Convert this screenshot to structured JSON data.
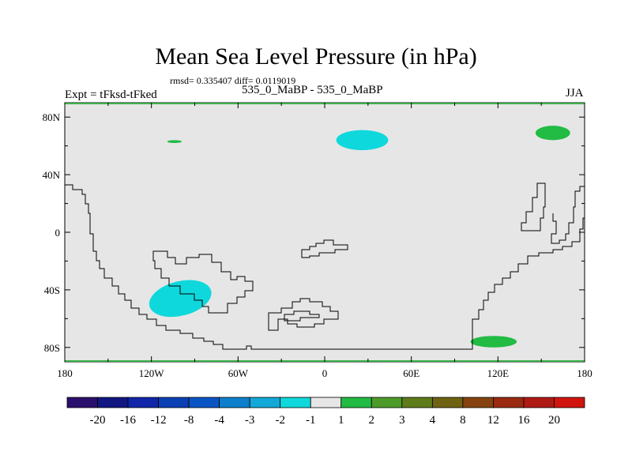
{
  "title": "Mean Sea Level Pressure (in hPa)",
  "stats_text": "rmsd= 0.335407 diff= 0.0119019",
  "experiment_label": "Expt = tFksd-tFked",
  "subtitle": "535_0_MaBP - 535_0_MaBP",
  "season": "JJA",
  "colors": {
    "background_field": "#e6e6e6",
    "coastline": "#000000",
    "frame_edge": "#3cb24a",
    "anomaly_cyan": "#0fd8dc",
    "anomaly_green": "#22bb44"
  },
  "axes": {
    "lon_ticks": [
      {
        "value": -180,
        "label": "180"
      },
      {
        "value": -120,
        "label": "120W"
      },
      {
        "value": -60,
        "label": "60W"
      },
      {
        "value": 0,
        "label": "0"
      },
      {
        "value": 60,
        "label": "60E"
      },
      {
        "value": 120,
        "label": "120E"
      },
      {
        "value": 180,
        "label": "180"
      }
    ],
    "lat_ticks": [
      {
        "value": 80,
        "label": "80N"
      },
      {
        "value": 40,
        "label": "40N"
      },
      {
        "value": 0,
        "label": "0"
      },
      {
        "value": -40,
        "label": "40S"
      },
      {
        "value": -80,
        "label": "80S"
      }
    ],
    "lon_range": [
      -180,
      180
    ],
    "lat_range": [
      -90,
      90
    ]
  },
  "anomaly_patches": [
    {
      "type": "negative",
      "class": "-2 to -1",
      "color": "#0fd8dc",
      "center_lon": 26,
      "center_lat": 64,
      "lon_radius": 18,
      "lat_radius": 7
    },
    {
      "type": "negative",
      "class": "-2 to -1",
      "color": "#0fd8dc",
      "center_lon": -100,
      "center_lat": -46,
      "lon_radius": 22,
      "lat_radius": 12
    },
    {
      "type": "positive",
      "class": "1 to 2",
      "color": "#22bb44",
      "center_lon": 158,
      "center_lat": 69,
      "lon_radius": 12,
      "lat_radius": 5
    },
    {
      "type": "positive",
      "class": "1 to 2",
      "color": "#22bb44",
      "center_lon": -104,
      "center_lat": 63,
      "lon_radius": 5,
      "lat_radius": 1
    },
    {
      "type": "positive",
      "class": "1 to 2",
      "color": "#22bb44",
      "center_lon": 117,
      "center_lat": -76,
      "lon_radius": 16,
      "lat_radius": 4
    }
  ],
  "colorbar": {
    "labels": [
      "-20",
      "-16",
      "-12",
      "-8",
      "-4",
      "-3",
      "-2",
      "-1",
      "1",
      "2",
      "3",
      "4",
      "8",
      "12",
      "16",
      "20"
    ],
    "colors": [
      "#2b0f6e",
      "#121682",
      "#1126a8",
      "#0b3fb4",
      "#0a55c4",
      "#0b7fcc",
      "#12a9d8",
      "#0fd8dc",
      "#e6e6e6",
      "#22bb44",
      "#4d9b2a",
      "#5e7c1a",
      "#6f6212",
      "#86420e",
      "#9a2a10",
      "#b01a14",
      "#d0140e"
    ]
  }
}
